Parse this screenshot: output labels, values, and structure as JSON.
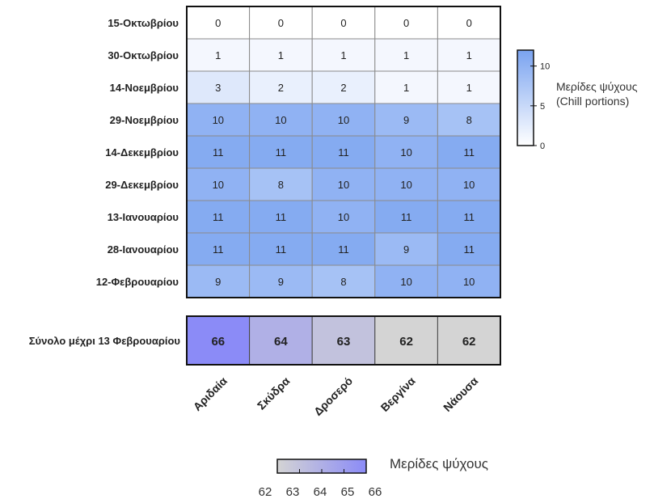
{
  "chart_data": [
    {
      "type": "heatmap",
      "rows": [
        "15-Οκτωβρίου",
        "30-Οκτωβρίου",
        "14-Νοεμβρίου",
        "29-Νοεμβρίου",
        "14-Δεκεμβρίου",
        "29-Δεκεμβρίου",
        "13-Ιανουαρίου",
        "28-Ιανουαρίου",
        "12-Φεβρουαρίου"
      ],
      "columns": [
        "Αριδαία",
        "Σκύδρα",
        "Δροσερό",
        "Βεργίνα",
        "Νάουσα"
      ],
      "values": [
        [
          0,
          0,
          0,
          0,
          0
        ],
        [
          1,
          1,
          1,
          1,
          1
        ],
        [
          3,
          2,
          2,
          1,
          1
        ],
        [
          10,
          10,
          10,
          9,
          8
        ],
        [
          11,
          11,
          11,
          10,
          11
        ],
        [
          10,
          8,
          10,
          10,
          10
        ],
        [
          11,
          11,
          10,
          11,
          11
        ],
        [
          11,
          11,
          11,
          9,
          11
        ],
        [
          9,
          9,
          8,
          10,
          10
        ]
      ],
      "colorbar": {
        "label_line1": "Μερίδες ψύχους",
        "label_line2": "(Chill portions)",
        "range": [
          0,
          12
        ],
        "ticks": [
          "0",
          "5",
          "10"
        ],
        "color_low": "#ffffff",
        "color_high": "#7aa3f0"
      }
    },
    {
      "type": "heatmap",
      "rows": [
        "Σύνολο μέχρι 13 Φεβρουαρίου"
      ],
      "columns": [
        "Αριδαία",
        "Σκύδρα",
        "Δροσερό",
        "Βεργίνα",
        "Νάουσα"
      ],
      "values": [
        [
          66,
          64,
          63,
          62,
          62
        ]
      ],
      "colorbar": {
        "label": "Μερίδες ψύχους",
        "range": [
          62,
          66
        ],
        "ticks": [
          "62",
          "63",
          "64",
          "65",
          "66"
        ],
        "color_low": "#d4d4d4",
        "color_high": "#8b8bf7"
      }
    }
  ]
}
